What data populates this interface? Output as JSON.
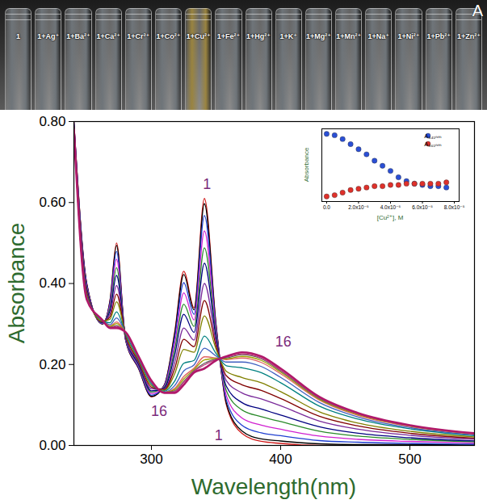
{
  "photo": {
    "panel_label": "A",
    "vials": [
      {
        "label": "1",
        "color": "#6f757a"
      },
      {
        "label": "1+Ag⁺",
        "color": "#6f757a"
      },
      {
        "label": "1+Ba²⁺",
        "color": "#6f757a"
      },
      {
        "label": "1+Ca²⁺",
        "color": "#6f757a"
      },
      {
        "label": "1+Cr³⁺",
        "color": "#6f757a"
      },
      {
        "label": "1+Co²⁺",
        "color": "#6f757a"
      },
      {
        "label": "1+Cu²⁺",
        "color": "#9a8440"
      },
      {
        "label": "1+Fe²⁺",
        "color": "#6f757a"
      },
      {
        "label": "1+Hg²⁺",
        "color": "#6f757a"
      },
      {
        "label": "1+K⁺",
        "color": "#6f757a"
      },
      {
        "label": "1+Mg²⁺",
        "color": "#6f757a"
      },
      {
        "label": "1+Mn²⁺",
        "color": "#6f757a"
      },
      {
        "label": "1+Na⁺",
        "color": "#6f757a"
      },
      {
        "label": "1+Ni²⁺",
        "color": "#6f757a"
      },
      {
        "label": "1+Pb²⁺",
        "color": "#6f757a"
      },
      {
        "label": "1+Zn²⁺",
        "color": "#6f757a"
      }
    ]
  },
  "chart_data": [
    {
      "type": "line",
      "xlabel": "Wavelength(nm)",
      "ylabel": "Absorbance",
      "xlim": [
        240,
        550
      ],
      "ylim": [
        0,
        0.8
      ],
      "xticks": [
        300,
        400,
        500
      ],
      "yticks": [
        {
          "value": 0,
          "label": "0.00"
        },
        {
          "value": 0.2,
          "label": "0.20"
        },
        {
          "value": 0.4,
          "label": "0.40"
        },
        {
          "value": 0.6,
          "label": "0.60"
        },
        {
          "value": 0.8,
          "label": "0.80"
        }
      ],
      "x": [
        240,
        250,
        262,
        268,
        273,
        280,
        290,
        300,
        310,
        318,
        325,
        333,
        341,
        350,
        358,
        370,
        385,
        400,
        430,
        460,
        500,
        550
      ],
      "series": [
        {
          "color": "#d01818",
          "values": [
            0.8,
            0.4,
            0.3,
            0.36,
            0.5,
            0.26,
            0.19,
            0.12,
            0.15,
            0.28,
            0.43,
            0.34,
            0.61,
            0.3,
            0.1,
            0.03,
            0.01,
            0.005,
            0,
            0,
            0,
            0
          ]
        },
        {
          "color": "#000000",
          "values": [
            0.799,
            0.399,
            0.3,
            0.358,
            0.494,
            0.261,
            0.191,
            0.121,
            0.149,
            0.276,
            0.422,
            0.335,
            0.597,
            0.297,
            0.104,
            0.036,
            0.016,
            0.011,
            0.004,
            0.002,
            0.002,
            0.001
          ]
        },
        {
          "color": "#1f3fd0",
          "values": [
            0.798,
            0.396,
            0.301,
            0.353,
            0.479,
            0.262,
            0.193,
            0.124,
            0.148,
            0.265,
            0.402,
            0.324,
            0.568,
            0.291,
            0.112,
            0.05,
            0.031,
            0.024,
            0.012,
            0.008,
            0.005,
            0.003
          ]
        },
        {
          "color": "#d020d0",
          "values": [
            0.796,
            0.392,
            0.302,
            0.347,
            0.46,
            0.264,
            0.196,
            0.128,
            0.146,
            0.252,
            0.377,
            0.31,
            0.53,
            0.283,
            0.123,
            0.068,
            0.05,
            0.04,
            0.023,
            0.015,
            0.01,
            0.006
          ]
        },
        {
          "color": "#2a8a2a",
          "values": [
            0.794,
            0.388,
            0.303,
            0.34,
            0.439,
            0.266,
            0.199,
            0.132,
            0.144,
            0.237,
            0.349,
            0.294,
            0.488,
            0.274,
            0.135,
            0.088,
            0.071,
            0.059,
            0.035,
            0.023,
            0.015,
            0.009
          ]
        },
        {
          "color": "#000080",
          "values": [
            0.792,
            0.385,
            0.304,
            0.333,
            0.42,
            0.268,
            0.201,
            0.135,
            0.142,
            0.223,
            0.324,
            0.279,
            0.45,
            0.266,
            0.146,
            0.106,
            0.09,
            0.075,
            0.046,
            0.03,
            0.019,
            0.011
          ]
        },
        {
          "color": "#7a2a9a",
          "values": [
            0.79,
            0.38,
            0.305,
            0.325,
            0.395,
            0.27,
            0.205,
            0.14,
            0.14,
            0.205,
            0.29,
            0.26,
            0.4,
            0.255,
            0.16,
            0.13,
            0.115,
            0.098,
            0.06,
            0.04,
            0.025,
            0.015
          ]
        },
        {
          "color": "#800000",
          "values": [
            0.788,
            0.376,
            0.306,
            0.318,
            0.374,
            0.272,
            0.208,
            0.144,
            0.138,
            0.19,
            0.262,
            0.244,
            0.358,
            0.246,
            0.172,
            0.15,
            0.136,
            0.116,
            0.072,
            0.048,
            0.03,
            0.018
          ]
        },
        {
          "color": "#808000",
          "values": [
            0.786,
            0.372,
            0.307,
            0.312,
            0.355,
            0.274,
            0.211,
            0.148,
            0.136,
            0.177,
            0.237,
            0.23,
            0.32,
            0.238,
            0.183,
            0.168,
            0.155,
            0.133,
            0.083,
            0.055,
            0.035,
            0.021
          ]
        },
        {
          "color": "#008080",
          "values": [
            0.784,
            0.368,
            0.308,
            0.303,
            0.33,
            0.276,
            0.214,
            0.152,
            0.134,
            0.159,
            0.203,
            0.21,
            0.27,
            0.227,
            0.197,
            0.192,
            0.18,
            0.155,
            0.097,
            0.065,
            0.041,
            0.024
          ]
        },
        {
          "color": "#4060c0",
          "values": [
            0.782,
            0.365,
            0.309,
            0.298,
            0.315,
            0.278,
            0.216,
            0.155,
            0.132,
            0.148,
            0.184,
            0.199,
            0.24,
            0.221,
            0.206,
            0.206,
            0.195,
            0.168,
            0.106,
            0.07,
            0.044,
            0.026
          ]
        },
        {
          "color": "#e06060",
          "values": [
            0.781,
            0.363,
            0.309,
            0.295,
            0.305,
            0.279,
            0.218,
            0.157,
            0.131,
            0.141,
            0.17,
            0.191,
            0.219,
            0.216,
            0.212,
            0.216,
            0.205,
            0.177,
            0.112,
            0.074,
            0.047,
            0.028
          ]
        },
        {
          "color": "#a0a000",
          "values": [
            0.781,
            0.362,
            0.31,
            0.294,
            0.301,
            0.279,
            0.219,
            0.158,
            0.131,
            0.138,
            0.164,
            0.188,
            0.211,
            0.215,
            0.214,
            0.22,
            0.21,
            0.181,
            0.114,
            0.076,
            0.048,
            0.029
          ]
        },
        {
          "color": "#606060",
          "values": [
            0.781,
            0.361,
            0.31,
            0.292,
            0.296,
            0.279,
            0.219,
            0.159,
            0.131,
            0.135,
            0.158,
            0.185,
            0.203,
            0.213,
            0.216,
            0.224,
            0.214,
            0.184,
            0.116,
            0.078,
            0.049,
            0.029
          ]
        },
        {
          "color": "#c04080",
          "values": [
            0.78,
            0.361,
            0.31,
            0.291,
            0.294,
            0.28,
            0.219,
            0.159,
            0.13,
            0.133,
            0.156,
            0.183,
            0.199,
            0.212,
            0.218,
            0.226,
            0.216,
            0.186,
            0.118,
            0.078,
            0.049,
            0.029
          ]
        },
        {
          "color": "#b0186a",
          "values": [
            0.78,
            0.36,
            0.31,
            0.29,
            0.29,
            0.28,
            0.22,
            0.16,
            0.13,
            0.13,
            0.15,
            0.18,
            0.19,
            0.21,
            0.22,
            0.23,
            0.22,
            0.19,
            0.12,
            0.08,
            0.05,
            0.03
          ]
        }
      ],
      "annotations": [
        {
          "text": "1",
          "x": 343,
          "y": 0.645
        },
        {
          "text": "16",
          "x": 402,
          "y": 0.255
        },
        {
          "text": "16",
          "x": 306,
          "y": 0.085
        },
        {
          "text": "1",
          "x": 352,
          "y": 0.025
        }
      ]
    },
    {
      "type": "scatter",
      "xlabel": "[Cu²⁺], M",
      "ylabel": "Absorbance",
      "xlim": [
        -3e-06,
        8.3e-05
      ],
      "ylim": [
        0.08,
        0.65
      ],
      "xticks": [
        {
          "value": 0,
          "label": "0.0"
        },
        {
          "value": 2e-05,
          "label": "2.0x10⁻⁵"
        },
        {
          "value": 4e-05,
          "label": "4.0x10⁻⁵"
        },
        {
          "value": 6e-05,
          "label": "6.0x10⁻⁵"
        },
        {
          "value": 8e-05,
          "label": "8.0x10⁻⁵"
        }
      ],
      "tick_labels": "x",
      "legend": "upper right",
      "x": [
        0,
        5e-06,
        1e-05,
        1.5e-05,
        2e-05,
        2.5e-05,
        3e-05,
        3.5e-05,
        4e-05,
        4.5e-05,
        5e-05,
        5.5e-05,
        6e-05,
        6.5e-05,
        7e-05,
        7.5e-05
      ],
      "series": [
        {
          "name": "A₃₄₁ₙₘ",
          "color": "#2a4fd6",
          "marker": "circle",
          "values": [
            0.61,
            0.6,
            0.57,
            0.53,
            0.49,
            0.45,
            0.4,
            0.36,
            0.32,
            0.27,
            0.24,
            0.22,
            0.21,
            0.2,
            0.2,
            0.19
          ]
        },
        {
          "name": "A₃₆₁ₙₘ",
          "color": "#e0302a",
          "marker": "circle",
          "values": [
            0.12,
            0.13,
            0.15,
            0.17,
            0.18,
            0.19,
            0.2,
            0.2,
            0.21,
            0.21,
            0.22,
            0.22,
            0.22,
            0.22,
            0.22,
            0.23
          ]
        }
      ]
    }
  ]
}
